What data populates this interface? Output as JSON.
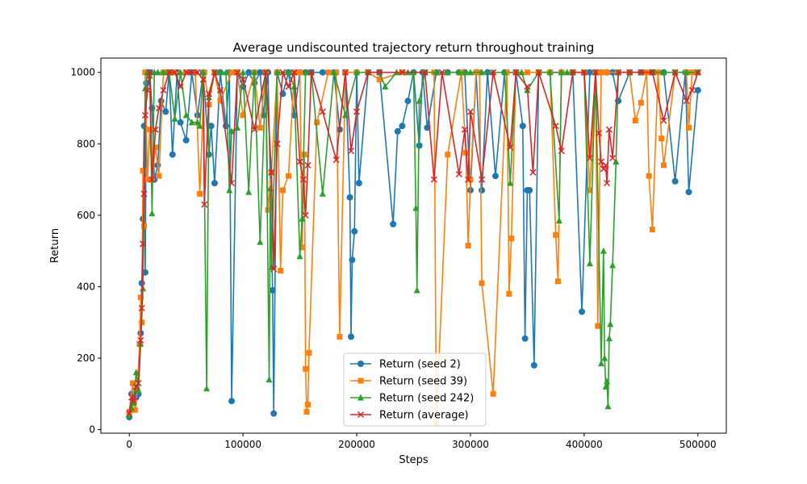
{
  "chart_data": {
    "type": "line",
    "title": "Average undiscounted trajectory return throughout training",
    "xlabel": "Steps",
    "ylabel": "Return",
    "xlim": [
      -25000,
      525000
    ],
    "ylim": [
      -10,
      1040
    ],
    "xticks": [
      0,
      100000,
      200000,
      300000,
      400000,
      500000
    ],
    "xtick_labels": [
      "0",
      "100000",
      "200000",
      "300000",
      "400000",
      "500000"
    ],
    "yticks": [
      0,
      200,
      400,
      600,
      800,
      1000
    ],
    "ytick_labels": [
      "0",
      "200",
      "400",
      "600",
      "800",
      "1000"
    ],
    "grid": false,
    "legend_position": "lower-center",
    "series": [
      {
        "name": "Return (seed 2)",
        "color": "#1f77b4",
        "marker": "circle",
        "x": [
          0,
          2000,
          4000,
          6000,
          8000,
          10000,
          11000,
          12000,
          13000,
          14000,
          15000,
          16000,
          18000,
          20000,
          22000,
          25000,
          28000,
          32000,
          35000,
          38000,
          42000,
          45000,
          50000,
          55000,
          60000,
          65000,
          70000,
          72000,
          75000,
          80000,
          85000,
          88000,
          90000,
          95000,
          100000,
          105000,
          110000,
          115000,
          118000,
          122000,
          126000,
          127000,
          130000,
          135000,
          140000,
          145000,
          150000,
          155000,
          160000,
          170000,
          180000,
          185000,
          190000,
          194000,
          195000,
          196000,
          198000,
          200000,
          202000,
          210000,
          220000,
          232000,
          236000,
          240000,
          245000,
          250000,
          255000,
          258000,
          262000,
          270000,
          280000,
          290000,
          295000,
          300000,
          305000,
          310000,
          315000,
          322000,
          330000,
          340000,
          346000,
          348000,
          350000,
          352000,
          356000,
          360000,
          370000,
          380000,
          390000,
          398000,
          405000,
          410000,
          415000,
          420000,
          425000,
          430000,
          440000,
          450000,
          460000,
          470000,
          480000,
          489000,
          492000,
          500000
        ],
        "y": [
          35,
          100,
          80,
          90,
          100,
          270,
          410,
          590,
          850,
          440,
          970,
          1000,
          1000,
          900,
          700,
          740,
          920,
          890,
          1000,
          770,
          1000,
          860,
          810,
          1000,
          880,
          1000,
          770,
          850,
          690,
          1000,
          850,
          1000,
          80,
          1000,
          960,
          1000,
          970,
          1000,
          880,
          1000,
          390,
          45,
          1000,
          940,
          1000,
          880,
          1000,
          1000,
          1000,
          1000,
          1000,
          840,
          1000,
          650,
          260,
          475,
          555,
          1000,
          690,
          1000,
          1000,
          575,
          835,
          850,
          920,
          1000,
          795,
          1000,
          845,
          1000,
          1000,
          1000,
          1000,
          670,
          1000,
          670,
          1000,
          710,
          1000,
          1000,
          850,
          255,
          670,
          670,
          180,
          1000,
          1000,
          1000,
          1000,
          330,
          1000,
          1000,
          1000,
          1000,
          1000,
          920,
          1000,
          1000,
          1000,
          1000,
          695,
          1000,
          665,
          950
        ]
      },
      {
        "name": "Return (seed 39)",
        "color": "#ff7f0e",
        "marker": "square",
        "x": [
          0,
          3000,
          5000,
          7000,
          9000,
          10000,
          11000,
          12000,
          13000,
          14000,
          16000,
          18000,
          20000,
          23000,
          26000,
          30000,
          35000,
          40000,
          50000,
          58000,
          62000,
          66000,
          70000,
          75000,
          80000,
          90000,
          95000,
          100000,
          110000,
          115000,
          120000,
          122000,
          125000,
          130000,
          133000,
          135000,
          140000,
          145000,
          150000,
          152000,
          154000,
          155000,
          156000,
          157000,
          158000,
          165000,
          175000,
          182000,
          185000,
          190000,
          200000,
          210000,
          220000,
          240000,
          260000,
          268000,
          270000,
          280000,
          292000,
          296000,
          298000,
          300000,
          305000,
          308000,
          310000,
          320000,
          332000,
          334000,
          336000,
          340000,
          350000,
          360000,
          370000,
          375000,
          377000,
          380000,
          390000,
          400000,
          405000,
          410000,
          412000,
          415000,
          420000,
          430000,
          440000,
          445000,
          450000,
          455000,
          457000,
          460000,
          465000,
          468000,
          470000,
          480000,
          490000,
          492000,
          495000,
          500000
        ],
        "y": [
          50,
          130,
          55,
          110,
          240,
          370,
          300,
          725,
          570,
          1000,
          700,
          840,
          700,
          790,
          710,
          1000,
          1000,
          1000,
          1000,
          1000,
          660,
          1000,
          910,
          1000,
          920,
          1000,
          1000,
          880,
          1000,
          845,
          1000,
          615,
          720,
          1000,
          445,
          670,
          710,
          1000,
          1000,
          510,
          770,
          170,
          50,
          70,
          215,
          860,
          1000,
          1000,
          260,
          1000,
          1000,
          1000,
          980,
          1000,
          1000,
          1000,
          20,
          770,
          1000,
          775,
          515,
          700,
          1000,
          1000,
          410,
          100,
          1000,
          380,
          535,
          1000,
          1000,
          1000,
          1000,
          545,
          415,
          1000,
          1000,
          1000,
          670,
          1000,
          290,
          1000,
          1000,
          1000,
          1000,
          865,
          915,
          1000,
          710,
          560,
          1000,
          815,
          740,
          1000,
          1000,
          845,
          1000,
          1000
        ]
      },
      {
        "name": "Return (seed 242)",
        "color": "#2ca02c",
        "marker": "triangle",
        "x": [
          0,
          2000,
          4000,
          6000,
          8000,
          10000,
          12000,
          14000,
          16000,
          18000,
          20000,
          22000,
          25000,
          30000,
          35000,
          40000,
          45000,
          50000,
          55000,
          60000,
          62000,
          65000,
          68000,
          70000,
          75000,
          80000,
          85000,
          88000,
          90000,
          95000,
          100000,
          105000,
          110000,
          115000,
          120000,
          123000,
          124000,
          125000,
          130000,
          140000,
          145000,
          150000,
          152000,
          155000,
          160000,
          170000,
          180000,
          190000,
          200000,
          210000,
          220000,
          225000,
          235000,
          245000,
          250000,
          252000,
          253000,
          255000,
          260000,
          270000,
          280000,
          290000,
          295000,
          300000,
          310000,
          320000,
          330000,
          335000,
          340000,
          345000,
          350000,
          360000,
          370000,
          378000,
          380000,
          385000,
          390000,
          400000,
          405000,
          410000,
          415000,
          417000,
          418000,
          419000,
          420000,
          421000,
          422000,
          423000,
          425000,
          428000,
          430000,
          440000,
          450000,
          460000,
          470000,
          480000,
          490000,
          500000
        ],
        "y": [
          40,
          60,
          75,
          160,
          110,
          240,
          395,
          955,
          1000,
          990,
          605,
          1000,
          1000,
          1000,
          1000,
          870,
          1000,
          880,
          860,
          860,
          850,
          1000,
          115,
          930,
          1000,
          1000,
          1000,
          670,
          835,
          845,
          1000,
          665,
          1000,
          525,
          1000,
          140,
          675,
          455,
          1000,
          1000,
          960,
          485,
          590,
          1000,
          1000,
          660,
          1000,
          880,
          1000,
          1000,
          1000,
          960,
          1000,
          1000,
          1000,
          620,
          390,
          920,
          1000,
          1000,
          1000,
          1000,
          1000,
          1000,
          1000,
          1000,
          1000,
          690,
          1000,
          1000,
          950,
          1000,
          1000,
          585,
          1000,
          1000,
          1000,
          1000,
          465,
          1000,
          185,
          500,
          200,
          120,
          135,
          65,
          255,
          295,
          460,
          750,
          1000,
          1000,
          1000,
          1000,
          1000,
          1000,
          1000,
          1000
        ]
      },
      {
        "name": "Return (average)",
        "color": "#d62728",
        "marker": "x",
        "x": [
          0,
          2000,
          4000,
          6000,
          8000,
          10000,
          11000,
          12000,
          13000,
          14000,
          16000,
          18000,
          20000,
          23000,
          26000,
          30000,
          35000,
          40000,
          45000,
          50000,
          55000,
          60000,
          65000,
          66000,
          70000,
          75000,
          80000,
          90000,
          95000,
          100000,
          110000,
          120000,
          125000,
          127000,
          130000,
          135000,
          140000,
          145000,
          150000,
          153000,
          155000,
          157000,
          160000,
          170000,
          182000,
          190000,
          195000,
          200000,
          210000,
          220000,
          240000,
          260000,
          268000,
          275000,
          290000,
          295000,
          298000,
          300000,
          310000,
          320000,
          335000,
          340000,
          350000,
          355000,
          360000,
          375000,
          380000,
          390000,
          400000,
          405000,
          410000,
          413000,
          415000,
          417000,
          419000,
          420000,
          422000,
          425000,
          430000,
          440000,
          450000,
          460000,
          470000,
          480000,
          490000,
          495000,
          500000
        ],
        "y": [
          45,
          90,
          80,
          120,
          130,
          250,
          340,
          520,
          660,
          880,
          950,
          1000,
          700,
          840,
          900,
          950,
          1000,
          1000,
          960,
          1000,
          1000,
          1000,
          980,
          630,
          940,
          1000,
          950,
          690,
          1000,
          980,
          840,
          1000,
          720,
          450,
          800,
          1000,
          960,
          1000,
          750,
          700,
          600,
          740,
          1000,
          890,
          755,
          1000,
          780,
          890,
          1000,
          1000,
          1000,
          1000,
          700,
          1000,
          715,
          840,
          700,
          890,
          700,
          1000,
          790,
          1000,
          960,
          720,
          1000,
          850,
          780,
          1000,
          1000,
          760,
          1000,
          830,
          750,
          730,
          740,
          690,
          840,
          760,
          1000,
          1000,
          1000,
          1000,
          865,
          1000,
          920,
          950,
          1000
        ]
      }
    ]
  }
}
